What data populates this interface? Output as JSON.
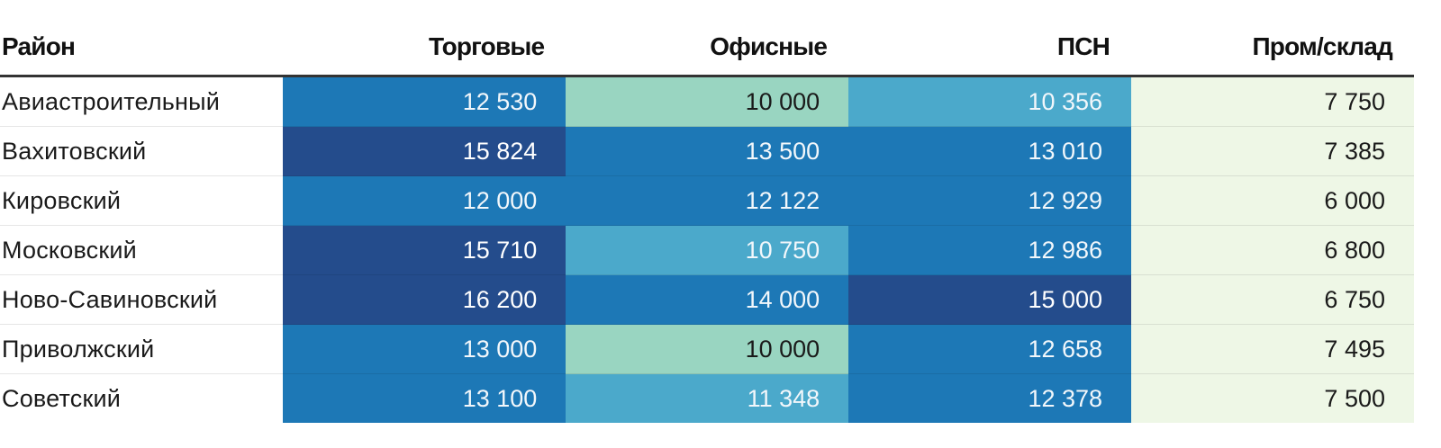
{
  "chart_data": {
    "type": "table",
    "columns": [
      "Район",
      "Торговые",
      "Офисные",
      "ПСН",
      "Пром/склад"
    ],
    "rows": [
      {
        "name": "Авиастроительный",
        "values": [
          12530,
          10000,
          10356,
          7750
        ],
        "labels": [
          "12 530",
          "10 000",
          "10 356",
          "7 750"
        ]
      },
      {
        "name": "Вахитовский",
        "values": [
          15824,
          13500,
          13010,
          7385
        ],
        "labels": [
          "15 824",
          "13 500",
          "13 010",
          "7 385"
        ]
      },
      {
        "name": "Кировский",
        "values": [
          12000,
          12122,
          12929,
          6000
        ],
        "labels": [
          "12 000",
          "12 122",
          "12 929",
          "6 000"
        ]
      },
      {
        "name": "Московский",
        "values": [
          15710,
          10750,
          12986,
          6800
        ],
        "labels": [
          "15 710",
          "10 750",
          "12 986",
          "6 800"
        ]
      },
      {
        "name": "Ново-Савиновский",
        "values": [
          16200,
          14000,
          15000,
          6750
        ],
        "labels": [
          "16 200",
          "14 000",
          "15 000",
          "6 750"
        ]
      },
      {
        "name": "Приволжский",
        "values": [
          13000,
          10000,
          12658,
          7495
        ],
        "labels": [
          "13 000",
          "10 000",
          "12 658",
          "7 495"
        ]
      },
      {
        "name": "Советский",
        "values": [
          13100,
          11348,
          12378,
          7500
        ],
        "labels": [
          "13 100",
          "11 348",
          "12 378",
          "7 500"
        ]
      }
    ],
    "color_scale": {
      "thresholds": [
        8000,
        10200,
        12000,
        15000
      ],
      "colors": [
        "#eef7e6",
        "#99d5c1",
        "#4ba9cb",
        "#1d78b6",
        "#244c8c"
      ],
      "text_colors": [
        "#1a1a1a",
        "#1a1a1a",
        "#f2f7fb",
        "#f2f7fb",
        "#ffffff"
      ]
    }
  }
}
